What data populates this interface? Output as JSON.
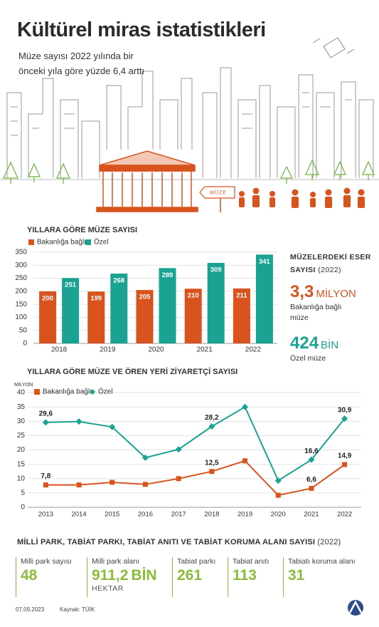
{
  "header": {
    "title": "Kültürel miras istatistikleri",
    "subtitle": "Müze sayısı 2022 yılında bir önceki yıla göre yüzde 6,4 arttı",
    "sign": "MÜZE"
  },
  "chart_data": [
    {
      "type": "bar",
      "title": "YILLARA GÖRE MÜZE SAYISI",
      "categories": [
        "2018",
        "2019",
        "2020",
        "2021",
        "2022"
      ],
      "series": [
        {
          "name": "Bakanlığa bağlı",
          "color": "#d9531e",
          "values": [
            200,
            199,
            205,
            210,
            211
          ]
        },
        {
          "name": "Özel",
          "color": "#1aa393",
          "values": [
            251,
            268,
            289,
            309,
            341
          ]
        }
      ],
      "ylim": [
        0,
        350
      ],
      "yticks": [
        0,
        50,
        100,
        150,
        200,
        250,
        300,
        350
      ],
      "grid": true
    },
    {
      "type": "line",
      "title": "YILLARA GÖRE MÜZE VE ÖREN YERİ ZİYARETÇİ SAYISI",
      "y_label": "MİLYON",
      "categories": [
        "2013",
        "2014",
        "2015",
        "2016",
        "2017",
        "2018",
        "2019",
        "2020",
        "2021",
        "2022"
      ],
      "series": [
        {
          "name": "Bakanlığa bağlı",
          "color": "#d9531e",
          "marker": "square",
          "values": [
            7.8,
            7.8,
            8.7,
            8.0,
            10.0,
            12.5,
            16.2,
            4.2,
            6.6,
            14.9
          ],
          "value_labels": [
            "7,8",
            null,
            null,
            null,
            null,
            "12,5",
            null,
            null,
            "6,6",
            "14,9"
          ]
        },
        {
          "name": "Özel",
          "color": "#1aa393",
          "marker": "diamond",
          "values": [
            29.6,
            29.9,
            28.0,
            17.3,
            20.2,
            28.2,
            35.0,
            9.3,
            16.6,
            30.9
          ],
          "value_labels": [
            "29,6",
            null,
            null,
            null,
            null,
            "28,2",
            null,
            null,
            "16,6",
            "30,9"
          ]
        }
      ],
      "ylim": [
        0,
        40
      ],
      "yticks": [
        0,
        5,
        10,
        15,
        20,
        25,
        30,
        35,
        40
      ],
      "grid": true
    }
  ],
  "artifacts": {
    "title": "MÜZELERDEKİ ESER SAYISI",
    "year": "(2022)",
    "items": [
      {
        "value": "3,3",
        "unit": "MİLYON",
        "label": "Bakanlığa bağlı müze"
      },
      {
        "value": "424",
        "unit": "BİN",
        "label": "Özel müze"
      }
    ]
  },
  "parks": {
    "title": "MİLLİ PARK, TABİAT PARKI, TABİAT ANITI VE TABİAT KORUMA ALANI SAYISI",
    "year": "(2022)",
    "items": [
      {
        "label": "Milli park sayısı",
        "value": "48"
      },
      {
        "label": "Milli park alanı",
        "value": "911,2",
        "unit": "BİN",
        "sub": "HEKTAR"
      },
      {
        "label": "Tabiat parkı",
        "value": "261"
      },
      {
        "label": "Tabiat anıtı",
        "value": "113"
      },
      {
        "label": "Tabiatı koruma alanı",
        "value": "31"
      }
    ]
  },
  "footer": {
    "date": "07.09.2023",
    "source": "Kaynak: TÜİK"
  }
}
